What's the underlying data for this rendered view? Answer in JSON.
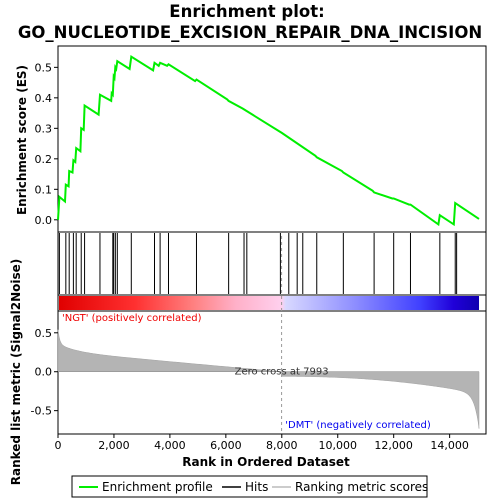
{
  "chart_data": {
    "type": "line",
    "title_line1": "Enrichment plot:",
    "title_line2": "GO_NUCLEOTIDE_EXCISION_REPAIR_DNA_INCISION",
    "es_panel": {
      "ylabel": "Enrichment score (ES)",
      "ylim": [
        -0.04,
        0.57
      ],
      "yticks": [
        "0.0",
        "0.1",
        "0.2",
        "0.3",
        "0.4",
        "0.5"
      ],
      "line_color": "#00ee00",
      "points": [
        [
          0,
          0.0
        ],
        [
          50,
          0.075
        ],
        [
          250,
          0.06
        ],
        [
          280,
          0.115
        ],
        [
          380,
          0.11
        ],
        [
          400,
          0.16
        ],
        [
          520,
          0.155
        ],
        [
          550,
          0.195
        ],
        [
          620,
          0.19
        ],
        [
          650,
          0.235
        ],
        [
          800,
          0.225
        ],
        [
          830,
          0.3
        ],
        [
          920,
          0.295
        ],
        [
          950,
          0.375
        ],
        [
          1450,
          0.345
        ],
        [
          1500,
          0.41
        ],
        [
          1900,
          0.39
        ],
        [
          1920,
          0.415
        ],
        [
          1960,
          0.41
        ],
        [
          1990,
          0.47
        ],
        [
          2020,
          0.465
        ],
        [
          2050,
          0.5
        ],
        [
          2080,
          0.495
        ],
        [
          2120,
          0.52
        ],
        [
          2560,
          0.495
        ],
        [
          2620,
          0.535
        ],
        [
          3400,
          0.49
        ],
        [
          3450,
          0.515
        ],
        [
          3600,
          0.505
        ],
        [
          3650,
          0.515
        ],
        [
          3900,
          0.505
        ],
        [
          3950,
          0.51
        ],
        [
          4900,
          0.455
        ],
        [
          4950,
          0.46
        ],
        [
          6050,
          0.395
        ],
        [
          6100,
          0.39
        ],
        [
          6600,
          0.365
        ],
        [
          6650,
          0.362
        ],
        [
          8000,
          0.285
        ],
        [
          9200,
          0.21
        ],
        [
          9250,
          0.205
        ],
        [
          10150,
          0.16
        ],
        [
          10200,
          0.155
        ],
        [
          11250,
          0.095
        ],
        [
          11300,
          0.09
        ],
        [
          11950,
          0.07
        ],
        [
          12000,
          0.07
        ],
        [
          12550,
          0.05
        ],
        [
          12600,
          0.05
        ],
        [
          13600,
          -0.015
        ],
        [
          13650,
          0.015
        ],
        [
          14150,
          -0.015
        ],
        [
          14200,
          0.055
        ],
        [
          15050,
          0.003
        ]
      ]
    },
    "hits": [
      50,
      280,
      400,
      550,
      650,
      830,
      950,
      1500,
      1960,
      1990,
      2050,
      2120,
      2620,
      3450,
      3650,
      3950,
      4950,
      6100,
      6650,
      6750,
      7950,
      8250,
      8550,
      8750,
      9250,
      10200,
      11300,
      12000,
      12600,
      13650,
      14200,
      14250
    ],
    "metric_panel": {
      "ylabel": "Ranked list metric (Signal2Noise)",
      "xlabel": "Rank in Ordered Dataset",
      "ylim": [
        -0.8,
        0.78
      ],
      "yticks": [
        "-0.5",
        "0.0",
        "0.5"
      ],
      "xticks": [
        "0",
        "2,000",
        "4,000",
        "6,000",
        "8,000",
        "10,000",
        "12,000",
        "14,000"
      ],
      "xmax": 15300,
      "n_genes": 15050,
      "zero_cross": 7993,
      "zero_cross_label": "Zero cross at 7993",
      "pos_label": "'NGT' (positively correlated)",
      "neg_label": "'DMT' (negatively correlated)",
      "pos_color": "#ff0000",
      "neg_color": "#0000ff"
    },
    "legend": [
      {
        "label": "Enrichment profile",
        "color": "#00ee00"
      },
      {
        "label": "Hits",
        "color": "#000000"
      },
      {
        "label": "Ranking metric scores",
        "color": "#bbbbbb"
      }
    ]
  }
}
